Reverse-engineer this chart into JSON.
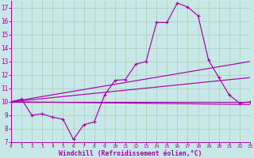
{
  "xlabel": "Windchill (Refroidissement éolien,°C)",
  "xlim": [
    0,
    23
  ],
  "ylim": [
    7,
    17.5
  ],
  "yticks": [
    7,
    8,
    9,
    10,
    11,
    12,
    13,
    14,
    15,
    16,
    17
  ],
  "xticks": [
    0,
    1,
    2,
    3,
    4,
    5,
    6,
    7,
    8,
    9,
    10,
    11,
    12,
    13,
    14,
    15,
    16,
    17,
    18,
    19,
    20,
    21,
    22,
    23
  ],
  "bg_color": "#c8e8e8",
  "line_color": "#aa00aa",
  "grid_color": "#aaccbb",
  "main_x": [
    0,
    1,
    2,
    3,
    4,
    5,
    6,
    7,
    8,
    9,
    10,
    11,
    12,
    13,
    14,
    15,
    16,
    17,
    18,
    19,
    20,
    21,
    22,
    23
  ],
  "main_y": [
    10.0,
    10.2,
    9.0,
    9.1,
    8.85,
    8.7,
    7.2,
    8.3,
    8.5,
    10.5,
    11.6,
    11.65,
    12.8,
    13.0,
    15.9,
    15.9,
    17.35,
    17.05,
    16.4,
    13.1,
    11.8,
    10.5,
    9.9,
    10.0
  ],
  "ref_lines": [
    {
      "x": [
        0,
        23
      ],
      "y": [
        10.0,
        13.0
      ]
    },
    {
      "x": [
        0,
        23
      ],
      "y": [
        10.0,
        11.8
      ]
    },
    {
      "x": [
        0,
        23
      ],
      "y": [
        10.0,
        10.0
      ]
    },
    {
      "x": [
        0,
        23
      ],
      "y": [
        10.0,
        9.8
      ]
    }
  ]
}
